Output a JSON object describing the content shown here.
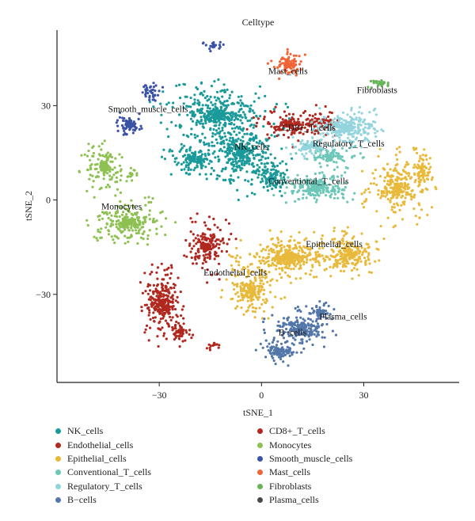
{
  "chart_data": {
    "type": "scatter",
    "title": "Celltype",
    "xlabel": "tSNE_1",
    "ylabel": "tSNE_2",
    "xlim": [
      -60,
      58
    ],
    "ylim": [
      -58,
      54
    ],
    "xticks": [
      -30,
      0,
      30
    ],
    "yticks": [
      -30,
      0,
      30
    ],
    "grid": false,
    "legend_position": "bottom",
    "series": [
      {
        "name": "NK_cells",
        "color": "#1a9a9a",
        "label_at": [
          -8,
          16
        ],
        "clusters": [
          {
            "cx": -13,
            "cy": 27,
            "rx": 17,
            "ry": 9,
            "n": 420
          },
          {
            "cx": -6,
            "cy": 15,
            "rx": 12,
            "ry": 12,
            "n": 380
          },
          {
            "cx": -20,
            "cy": 13,
            "rx": 8,
            "ry": 6,
            "n": 160
          },
          {
            "cx": 3,
            "cy": 7,
            "rx": 6,
            "ry": 6,
            "n": 110
          }
        ]
      },
      {
        "name": "CD8+_T_cells",
        "color": "#b0281f",
        "label_at": [
          6,
          22
        ],
        "clusters": [
          {
            "cx": 8,
            "cy": 24,
            "rx": 10,
            "ry": 6,
            "n": 170
          },
          {
            "cx": 18,
            "cy": 25,
            "rx": 5,
            "ry": 5,
            "n": 70
          }
        ]
      },
      {
        "name": "Endothelial_cells",
        "color": "#b0281f",
        "label_at": [
          -17,
          -24
        ],
        "clusters": [
          {
            "cx": -29,
            "cy": -33,
            "rx": 6,
            "ry": 11,
            "n": 320
          },
          {
            "cx": -24,
            "cy": -42,
            "rx": 3.5,
            "ry": 4,
            "n": 60
          },
          {
            "cx": -16,
            "cy": -15,
            "rx": 7,
            "ry": 9,
            "n": 200
          },
          {
            "cx": -14,
            "cy": -46,
            "rx": 2,
            "ry": 1.5,
            "n": 14
          }
        ]
      },
      {
        "name": "Monocytes",
        "color": "#8dc152",
        "label_at": [
          -47,
          -3
        ],
        "clusters": [
          {
            "cx": -46,
            "cy": 10,
            "rx": 6,
            "ry": 8,
            "n": 150
          },
          {
            "cx": -39,
            "cy": -7,
            "rx": 11,
            "ry": 7,
            "n": 280
          },
          {
            "cx": -38,
            "cy": 8,
            "rx": 2,
            "ry": 2,
            "n": 18
          }
        ]
      },
      {
        "name": "Epithelial_cells",
        "color": "#e8b93a",
        "label_at": [
          13,
          -15
        ],
        "clusters": [
          {
            "cx": 8,
            "cy": -18,
            "rx": 14,
            "ry": 7,
            "n": 420
          },
          {
            "cx": -3,
            "cy": -29,
            "rx": 8,
            "ry": 8,
            "n": 220
          },
          {
            "cx": 26,
            "cy": -17,
            "rx": 10,
            "ry": 7,
            "n": 240
          },
          {
            "cx": 40,
            "cy": 4,
            "rx": 9,
            "ry": 11,
            "n": 280
          },
          {
            "cx": 47,
            "cy": 9,
            "rx": 3,
            "ry": 8,
            "n": 90
          }
        ]
      },
      {
        "name": "Smooth_muscle_cells",
        "color": "#3b53a6",
        "label_at": [
          -45,
          28
        ],
        "clusters": [
          {
            "cx": -39,
            "cy": 24,
            "rx": 4,
            "ry": 3.5,
            "n": 90
          },
          {
            "cx": -32,
            "cy": 34,
            "rx": 3,
            "ry": 3,
            "n": 40
          },
          {
            "cx": -14,
            "cy": 49,
            "rx": 3,
            "ry": 1.8,
            "n": 26
          }
        ]
      },
      {
        "name": "Conventional_T_cells",
        "color": "#6dc7b8",
        "label_at": [
          2,
          5
        ],
        "clusters": [
          {
            "cx": 16,
            "cy": 4,
            "rx": 11,
            "ry": 5,
            "n": 240
          },
          {
            "cx": 20,
            "cy": 14,
            "rx": 8,
            "ry": 4,
            "n": 110
          }
        ]
      },
      {
        "name": "Mast_cells",
        "color": "#ef6535",
        "label_at": [
          2,
          40
        ],
        "clusters": [
          {
            "cx": 8,
            "cy": 43,
            "rx": 5,
            "ry": 4,
            "n": 110
          }
        ]
      },
      {
        "name": "Regulatory_T_cells",
        "color": "#93d4dd",
        "label_at": [
          15,
          17
        ],
        "clusters": [
          {
            "cx": 25,
            "cy": 23,
            "rx": 11,
            "ry": 6,
            "n": 280
          },
          {
            "cx": 14,
            "cy": 17,
            "rx": 6,
            "ry": 4,
            "n": 90
          }
        ]
      },
      {
        "name": "Fibroblasts",
        "color": "#68b45a",
        "label_at": [
          28,
          34
        ],
        "clusters": [
          {
            "cx": 35,
            "cy": 37,
            "rx": 4,
            "ry": 1.4,
            "n": 35
          }
        ]
      },
      {
        "name": "B−cells",
        "color": "#5277a8",
        "label_at": [
          5,
          -43
        ],
        "clusters": [
          {
            "cx": 11,
            "cy": -41,
            "rx": 9,
            "ry": 6,
            "n": 240
          },
          {
            "cx": 5,
            "cy": -48,
            "rx": 6,
            "ry": 4,
            "n": 110
          },
          {
            "cx": 17,
            "cy": -36,
            "rx": 4,
            "ry": 3,
            "n": 60
          }
        ]
      },
      {
        "name": "Plasma_cells",
        "color": "#4a4a4a",
        "label_at": [
          17,
          -38
        ],
        "clusters": []
      }
    ]
  }
}
